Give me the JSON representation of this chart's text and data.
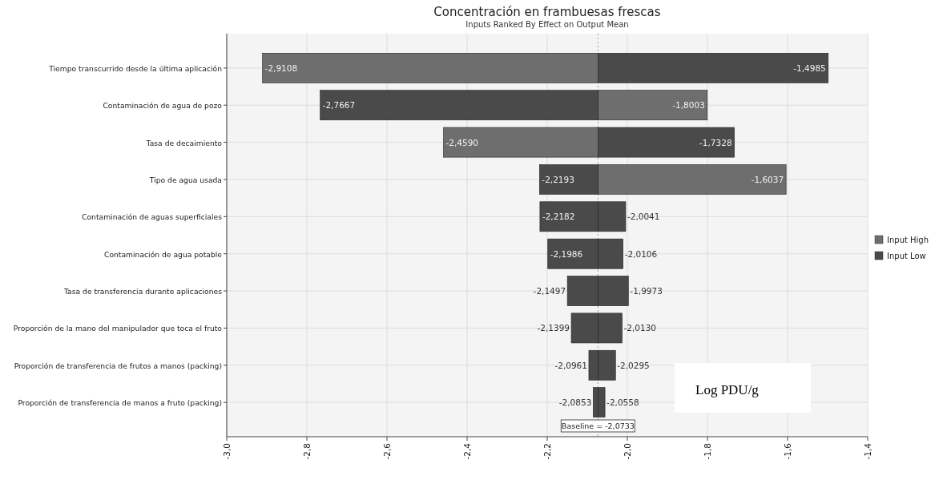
{
  "chart_data": {
    "type": "bar",
    "orientation": "horizontal",
    "title": "Concentración en frambuesas frescas",
    "subtitle": "Inputs Ranked By Effect on Output Mean",
    "categories": [
      "Tiempo transcurrido desde la última aplicación",
      "Contaminación de agua de pozo",
      "Tasa de decaimiento",
      "Tipo de agua usada",
      "Contaminación de aguas superficiales",
      "Contaminación de agua potable",
      "Tasa de transferencia durante aplicaciones",
      "Proporción de la mano del manipulador que toca el fruto",
      "Proporción de transferencia de frutos a manos (packing)",
      "Proporción de transferencia de manos a fruto (packing)"
    ],
    "series": [
      {
        "name": "Input High",
        "color": "#6e6e6e",
        "colors": [
          "#6e6e6e",
          "#6e6e6e",
          "#6e6e6e",
          "#6e6e6e",
          "#4a4a4a",
          "#4a4a4a",
          "#4a4a4a",
          "#4a4a4a",
          "#4a4a4a",
          "#4a4a4a"
        ],
        "base": [
          -2.0733,
          -2.0733,
          -2.0733,
          -2.0733,
          -2.0733,
          -2.0733,
          -2.0733,
          -2.0733,
          -2.0733,
          -2.0733
        ],
        "values": [
          -0.8375,
          0.273,
          -0.3857,
          0.4696,
          0.0692,
          0.0627,
          0.076,
          0.0603,
          0.0438,
          0.0175
        ],
        "value_labels": [
          "-2,9108",
          "-1,8003",
          "-2,4590",
          "-1,6037",
          "-2,0041",
          "-2,0106",
          "-1,9973",
          "-2,0130",
          "-2,0295",
          "-2,0558"
        ]
      },
      {
        "name": "Input Low",
        "color": "#4a4a4a",
        "base": [
          -2.0733,
          -2.0733,
          -2.0733,
          -2.0733,
          -2.0733,
          -2.0733,
          -2.0733,
          -2.0733,
          -2.0733,
          -2.0733
        ],
        "values": [
          0.5748,
          -0.6934,
          0.3405,
          -0.146,
          -0.1449,
          -0.1253,
          -0.0764,
          -0.0666,
          -0.0228,
          -0.012
        ],
        "value_labels": [
          "-1,4985",
          "-2,7667",
          "-1,7328",
          "-2,2193",
          "-2,2182",
          "-2,1986",
          "-2,1497",
          "-2,1399",
          "-2,0961",
          "-2,0853"
        ]
      }
    ],
    "xlim": [
      -3.0,
      -1.4
    ],
    "xticks": [
      {
        "value": -3.0,
        "label": "-3,0"
      },
      {
        "value": -2.8,
        "label": "-2,8"
      },
      {
        "value": -2.6,
        "label": "-2,6"
      },
      {
        "value": -2.4,
        "label": "-2,4"
      },
      {
        "value": -2.2,
        "label": "-2,2"
      },
      {
        "value": -2.0,
        "label": "-2,0"
      },
      {
        "value": -1.8,
        "label": "-1,8"
      },
      {
        "value": -1.6,
        "label": "-1,6"
      },
      {
        "value": -1.4,
        "label": "-1,4"
      }
    ],
    "ref_lines": [
      {
        "axis": "x",
        "value": -2.0733,
        "label": "Baseline = -2,0733",
        "line_style": "dotted"
      }
    ],
    "annotations": [
      "Log PDU/g"
    ],
    "grid": true,
    "legend": "right"
  }
}
